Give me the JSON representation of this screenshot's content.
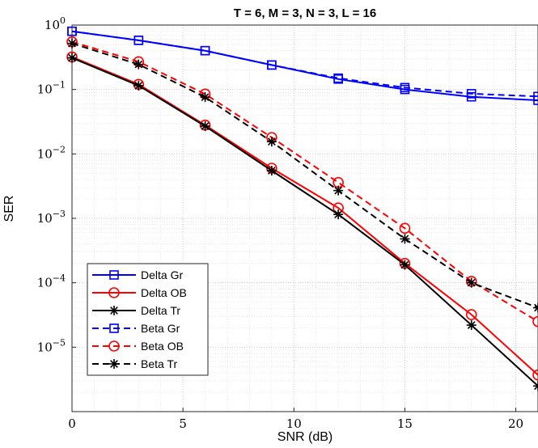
{
  "chart_data": {
    "type": "line",
    "title": "T = 6, M = 3, N = 3, L = 16",
    "xlabel": "SNR (dB)",
    "ylabel": "SER",
    "xlim": [
      0,
      21
    ],
    "ylim": [
      1e-06,
      1
    ],
    "y_scale": "log",
    "grid": true,
    "minor_grid": true,
    "legend_position": "bottom-left",
    "x_ticks": [
      0,
      5,
      10,
      15,
      20
    ],
    "y_ticks": [
      {
        "value": 1,
        "base": "10",
        "exp": "0"
      },
      {
        "value": 0.1,
        "base": "10",
        "exp": "−1"
      },
      {
        "value": 0.01,
        "base": "10",
        "exp": "−2"
      },
      {
        "value": 0.001,
        "base": "10",
        "exp": "−3"
      },
      {
        "value": 0.0001,
        "base": "10",
        "exp": "−4"
      },
      {
        "value": 1e-05,
        "base": "10",
        "exp": "−5"
      }
    ],
    "x": [
      0,
      3,
      6,
      9,
      12,
      15,
      18,
      21
    ],
    "series": [
      {
        "name": "Delta Gr",
        "color": "#0000ff",
        "dash": "solid",
        "marker": "square",
        "values": [
          0.8,
          0.58,
          0.4,
          0.24,
          0.145,
          0.1,
          0.077,
          0.068
        ]
      },
      {
        "name": "Delta OB",
        "color": "#ff0000",
        "dash": "solid",
        "marker": "circle",
        "values": [
          0.32,
          0.12,
          0.028,
          0.006,
          0.00145,
          0.0002,
          3.2e-05,
          3.7e-06
        ]
      },
      {
        "name": "Delta Tr",
        "color": "#000000",
        "dash": "solid",
        "marker": "star",
        "values": [
          0.31,
          0.115,
          0.027,
          0.0055,
          0.00115,
          0.00019,
          2.2e-05,
          2.5e-06
        ]
      },
      {
        "name": "Beta Gr",
        "color": "#0000ff",
        "dash": "dashed",
        "marker": "square",
        "values": [
          0.8,
          0.58,
          0.4,
          0.24,
          0.15,
          0.107,
          0.086,
          0.078
        ]
      },
      {
        "name": "Beta OB",
        "color": "#ff0000",
        "dash": "dashed",
        "marker": "circle",
        "values": [
          0.55,
          0.27,
          0.085,
          0.018,
          0.0036,
          0.0007,
          0.000105,
          2.5e-05
        ]
      },
      {
        "name": "Beta Tr",
        "color": "#000000",
        "dash": "dashed",
        "marker": "star",
        "values": [
          0.52,
          0.245,
          0.076,
          0.0155,
          0.0027,
          0.00048,
          0.0001,
          4.1e-05
        ]
      }
    ]
  }
}
